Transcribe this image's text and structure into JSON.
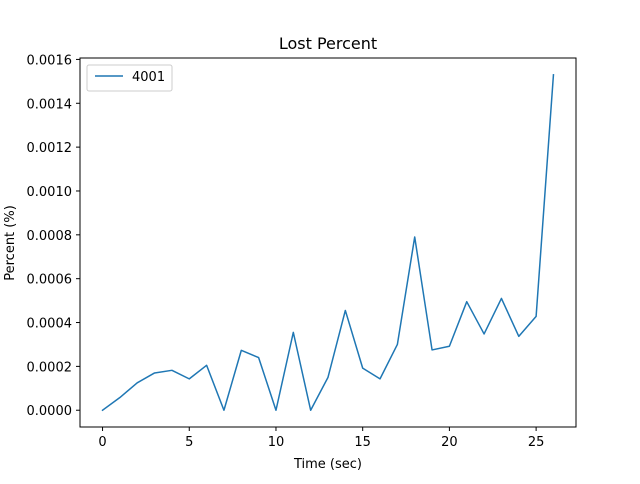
{
  "chart_data": {
    "type": "line",
    "title": "Lost Percent",
    "xlabel": "Time (sec)",
    "ylabel": "Percent (%)",
    "xlim": [
      -1.3,
      27.3
    ],
    "ylim": [
      -7.65e-05,
      0.0016065
    ],
    "xticks": [
      0,
      5,
      10,
      15,
      20,
      25
    ],
    "xtick_labels": [
      "0",
      "5",
      "10",
      "15",
      "20",
      "25"
    ],
    "yticks": [
      0.0,
      0.0002,
      0.0004,
      0.0006,
      0.0008,
      0.001,
      0.0012,
      0.0014,
      0.0016
    ],
    "ytick_labels": [
      "0.0000",
      "0.0002",
      "0.0004",
      "0.0006",
      "0.0008",
      "0.0010",
      "0.0012",
      "0.0014",
      "0.0016"
    ],
    "grid": false,
    "legend_position": "upper-left",
    "series": [
      {
        "name": "4001",
        "color": "#1f77b4",
        "x": [
          0,
          1,
          2,
          3,
          4,
          5,
          6,
          7,
          8,
          9,
          10,
          11,
          12,
          13,
          14,
          15,
          16,
          17,
          18,
          19,
          20,
          21,
          22,
          23,
          24,
          25,
          26
        ],
        "y": [
          0.0,
          5.8e-05,
          0.000125,
          0.00017,
          0.000182,
          0.000143,
          0.000205,
          0.0,
          0.000273,
          0.00024,
          0.0,
          0.000355,
          0.0,
          0.00015,
          0.000455,
          0.000192,
          0.000143,
          0.0003,
          0.00079,
          0.000275,
          0.000292,
          0.000495,
          0.000348,
          0.00051,
          0.000337,
          0.000428,
          0.00153
        ]
      }
    ]
  }
}
